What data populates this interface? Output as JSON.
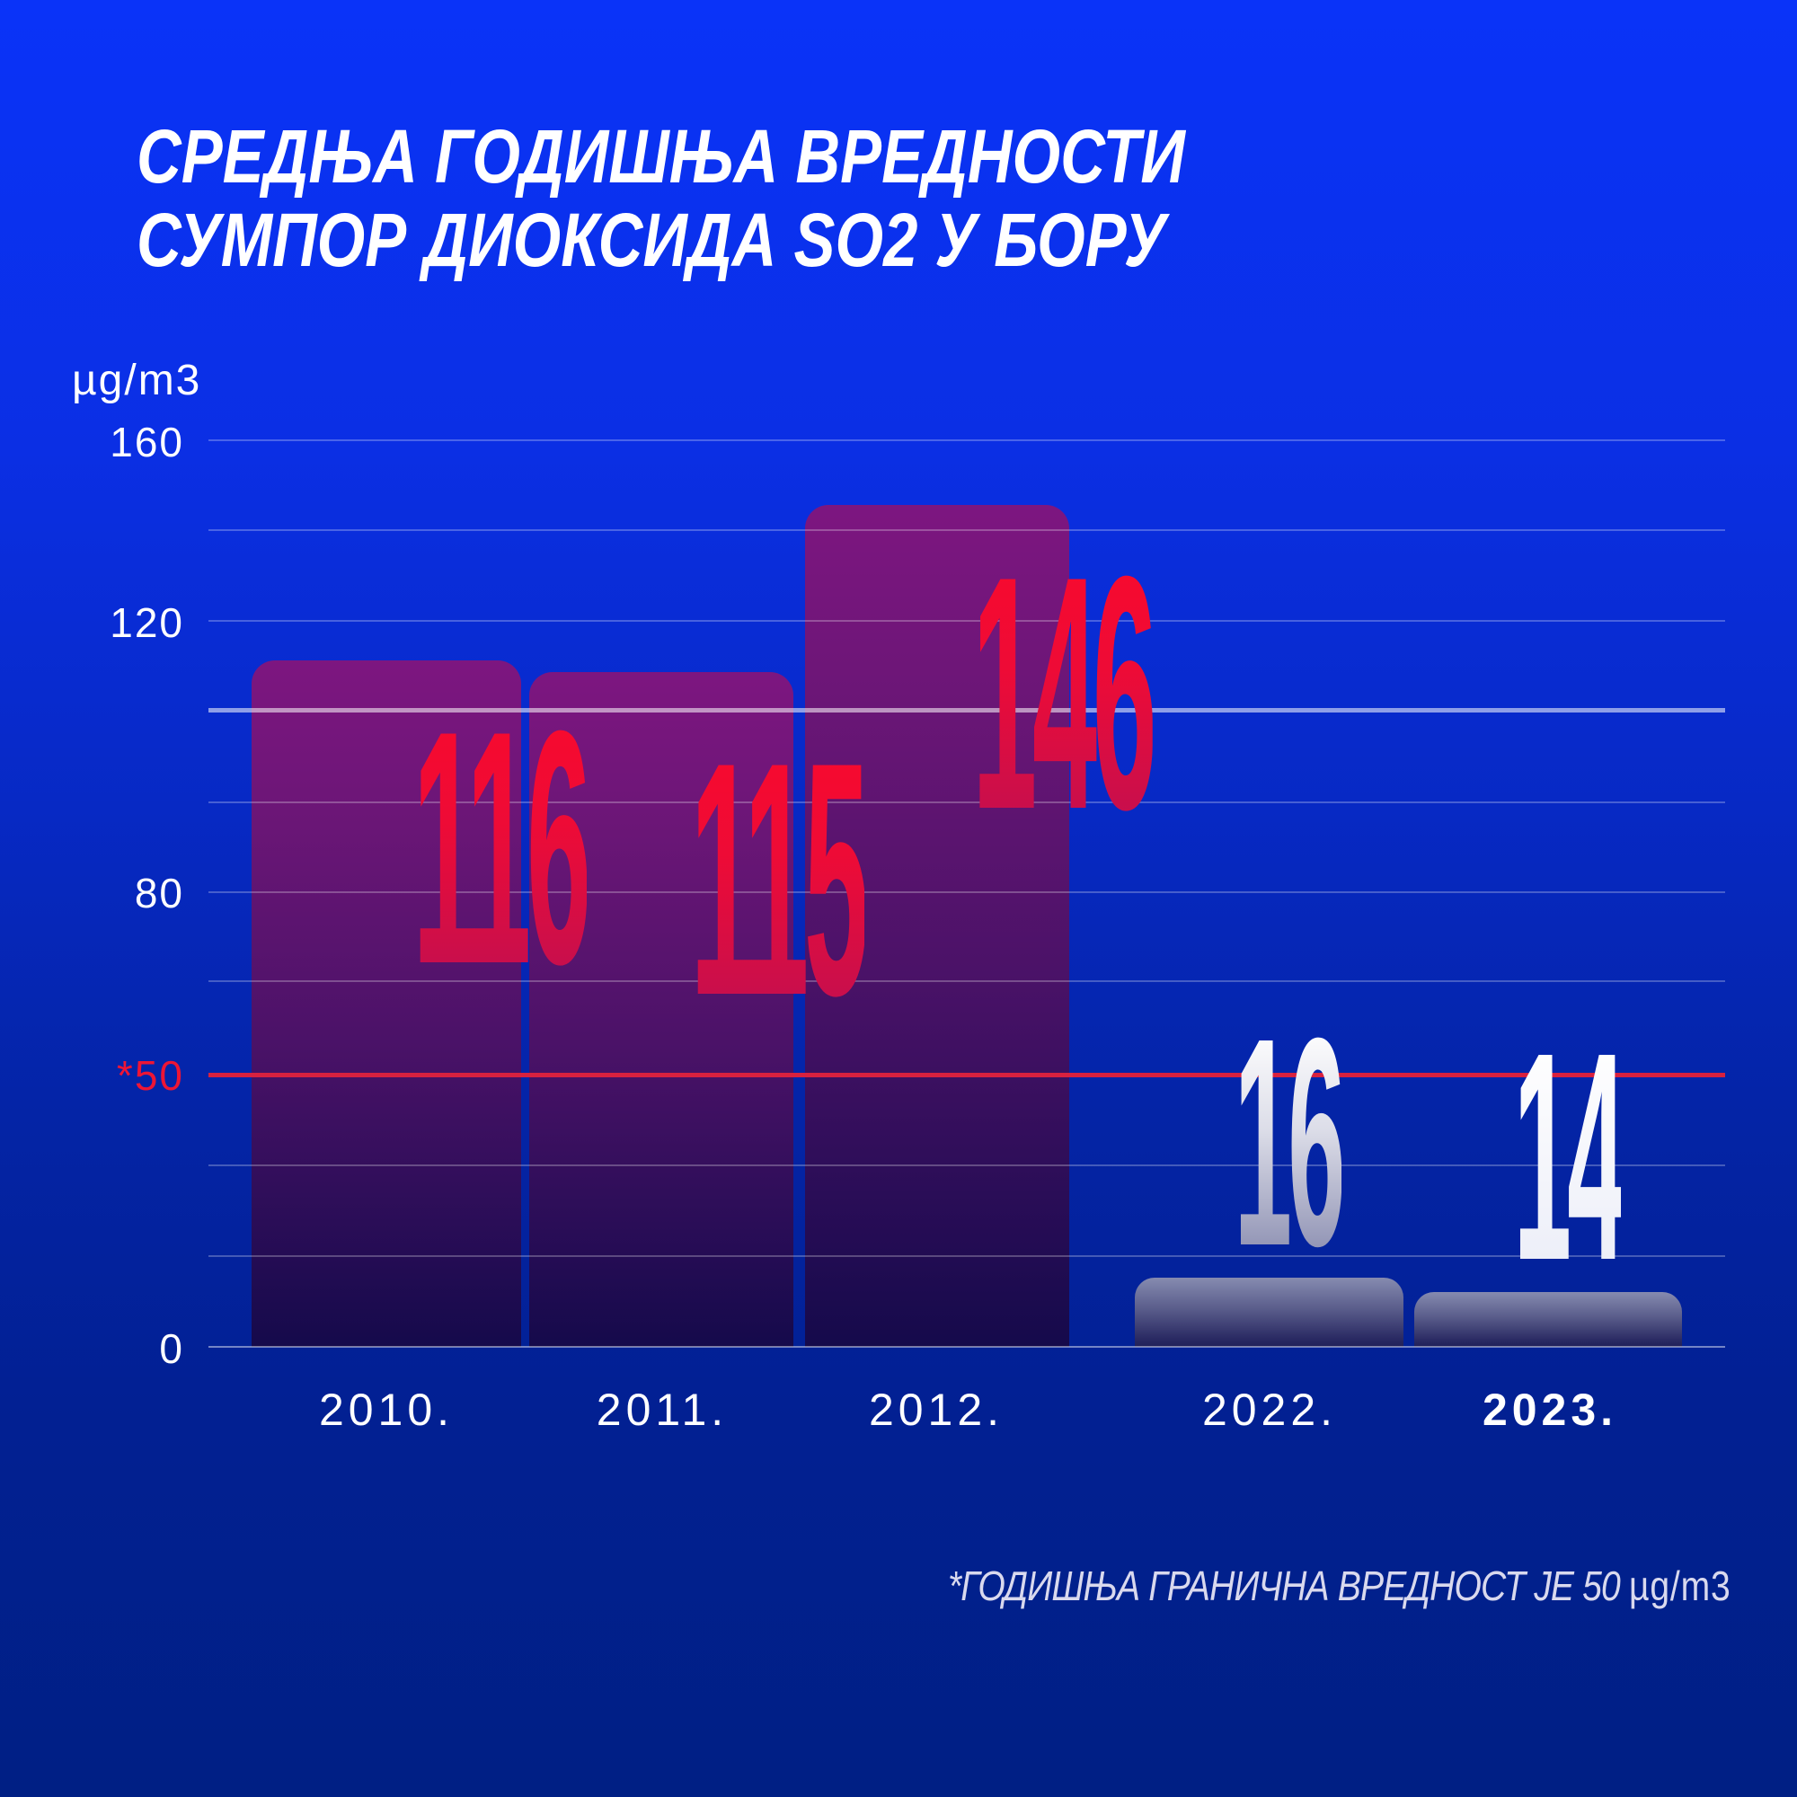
{
  "title": {
    "line1": "СРЕДЊА ГОДИШЊА ВРЕДНОСТИ",
    "line2": "СУМПОР ДИОКСИДА SO2 У БОРУ"
  },
  "yaxis": {
    "unit": "µg/m3",
    "ticks": [
      {
        "label": "160",
        "color": "#ffffff"
      },
      {
        "label": "120",
        "color": "#ffffff"
      },
      {
        "label": "80",
        "color": "#ffffff"
      },
      {
        "label": "*50",
        "color": "#ee1535"
      },
      {
        "label": "0",
        "color": "#ffffff"
      }
    ]
  },
  "footnote": {
    "text": "*ГОДИШЊА ГРАНИЧНА ВРЕДНОСТ ЈЕ 50 ",
    "unit": "µg/m3"
  },
  "colors": {
    "background_top": "#0a33f8",
    "background_bottom": "#001f84",
    "bar_purple_top": "#7d1680",
    "bar_purple_bottom": "#150a4b",
    "bar_gray_top": "#868bb0",
    "bar_gray_bottom": "#20205a",
    "value_red": "#f70a2e",
    "value_silver": "#8d90b2",
    "value_white": "#ffffff",
    "limit_line": "#d8213f",
    "tick_red": "#ee1535"
  },
  "chart_data": {
    "type": "bar",
    "title": "СРЕДЊА ГОДИШЊА ВРЕДНОСТИ СУМПОР ДИОКСИДА SO2 У БОРУ",
    "ylabel": "µg/m3",
    "xlabel": "",
    "categories": [
      "2010.",
      "2011.",
      "2012.",
      "2022.",
      "2023."
    ],
    "values": [
      116,
      115,
      146,
      16,
      14
    ],
    "ylim": [
      0,
      160
    ],
    "yticks": [
      160,
      120,
      80,
      50,
      0
    ],
    "grid": true,
    "legend": false,
    "limit_line": {
      "value": 50,
      "tick_label": "*50",
      "annotation": "*ГОДИШЊА ГРАНИЧНА ВРЕДНОСТ ЈЕ 50 µg/m3"
    }
  }
}
